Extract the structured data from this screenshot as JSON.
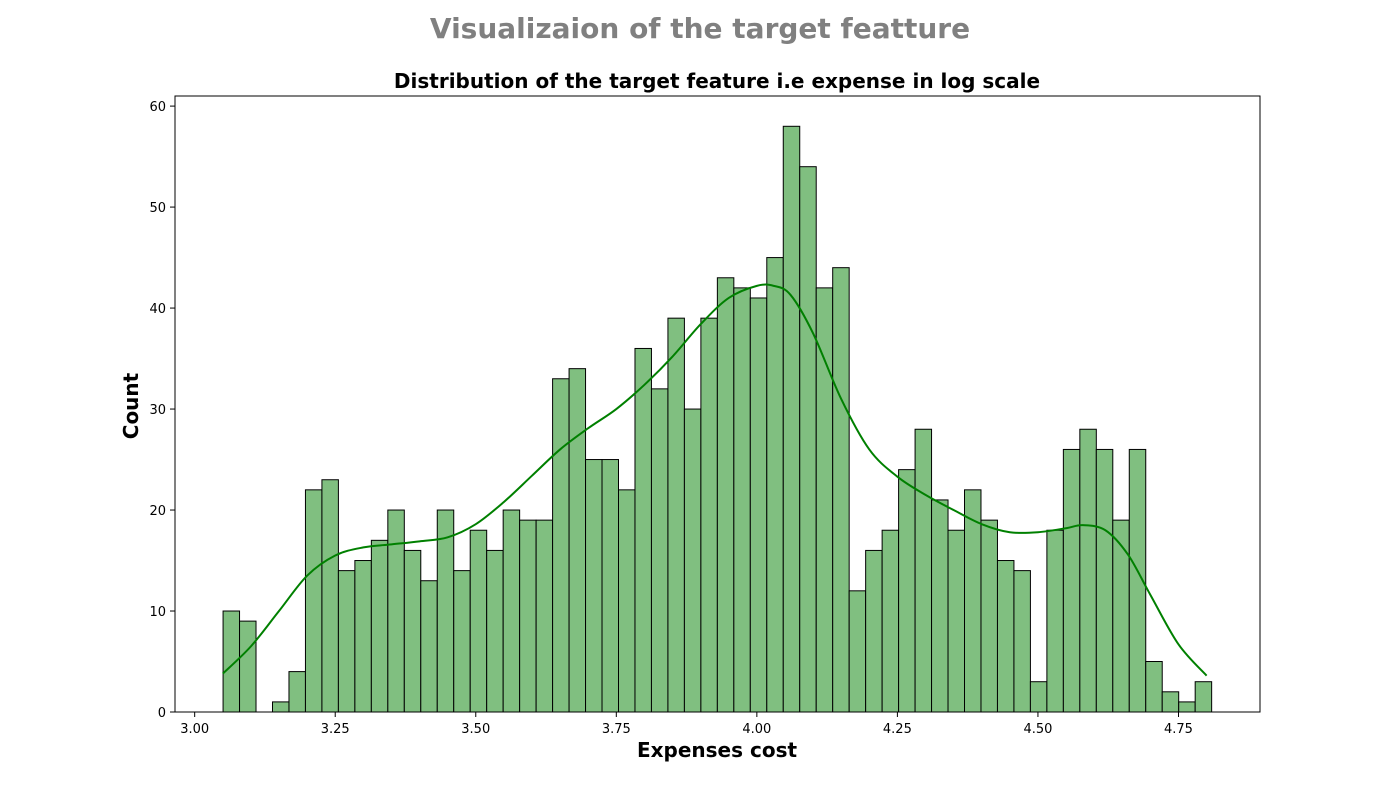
{
  "suptitle": "Visualizaion of the target featture",
  "chart_data": {
    "type": "bar",
    "title": "Distribution of the target feature i.e expense in log scale",
    "xlabel": "Expenses cost",
    "ylabel": "Count",
    "xlim": [
      2.965,
      4.895
    ],
    "ylim": [
      0,
      61
    ],
    "x_ticks": [
      3.0,
      3.25,
      3.5,
      3.75,
      4.0,
      4.25,
      4.5,
      4.75
    ],
    "x_tick_labels": [
      "3.00",
      "3.25",
      "3.50",
      "3.75",
      "4.00",
      "4.25",
      "4.50",
      "4.75"
    ],
    "y_ticks": [
      0,
      10,
      20,
      30,
      40,
      50,
      60
    ],
    "y_tick_labels": [
      "0",
      "10",
      "20",
      "30",
      "40",
      "50",
      "60"
    ],
    "bin_start": 3.0505,
    "bin_end": 4.809,
    "counts": [
      10,
      9,
      0,
      1,
      4,
      22,
      23,
      14,
      15,
      17,
      20,
      16,
      13,
      20,
      14,
      18,
      16,
      20,
      19,
      19,
      33,
      34,
      25,
      25,
      22,
      36,
      32,
      39,
      30,
      39,
      43,
      42,
      41,
      45,
      58,
      54,
      42,
      44,
      12,
      16,
      18,
      24,
      28,
      21,
      18,
      22,
      19,
      15,
      14,
      3,
      18,
      26,
      28,
      26,
      19,
      26,
      5,
      2,
      1,
      3
    ],
    "kde": {
      "x": [
        3.05,
        3.1,
        3.15,
        3.2,
        3.25,
        3.3,
        3.35,
        3.4,
        3.45,
        3.5,
        3.55,
        3.6,
        3.65,
        3.7,
        3.75,
        3.8,
        3.85,
        3.9,
        3.95,
        4.0,
        4.03,
        4.06,
        4.1,
        4.15,
        4.2,
        4.25,
        4.3,
        4.35,
        4.4,
        4.45,
        4.5,
        4.55,
        4.58,
        4.62,
        4.66,
        4.7,
        4.75,
        4.8
      ],
      "y": [
        3.8,
        6.5,
        10.0,
        13.5,
        15.5,
        16.3,
        16.6,
        16.9,
        17.3,
        18.6,
        20.8,
        23.4,
        26.0,
        28.1,
        30.0,
        32.4,
        35.2,
        38.4,
        41.0,
        42.2,
        42.2,
        41.3,
        37.5,
        31.0,
        26.0,
        23.3,
        21.5,
        20.0,
        18.6,
        17.8,
        17.8,
        18.2,
        18.5,
        18.0,
        15.6,
        11.6,
        6.7,
        3.6
      ]
    },
    "bar_fill": "#80bf80",
    "bar_edge": "#000000",
    "line_color": "#008000",
    "suptitle_color": "#808080"
  }
}
